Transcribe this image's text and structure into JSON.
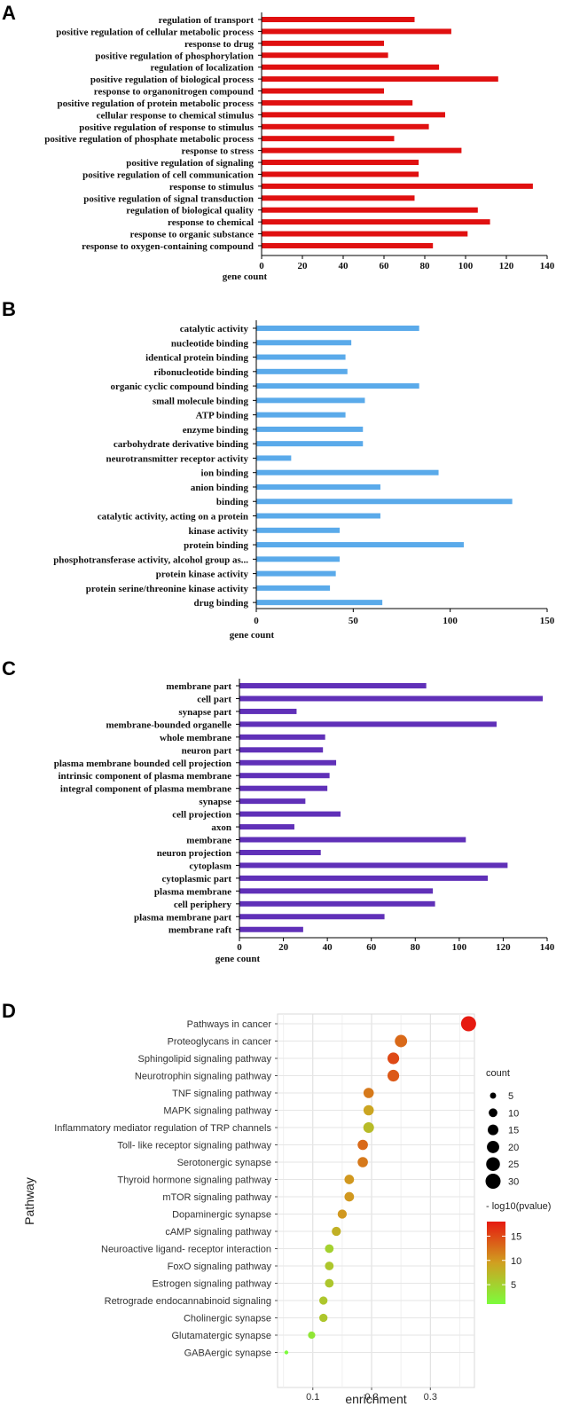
{
  "chart_data": [
    {
      "panel": "A",
      "type": "bar",
      "orientation": "horizontal",
      "categories": [
        "regulation of transport",
        "positive regulation of cellular metabolic process",
        "response to drug",
        "positive regulation of phosphorylation",
        "regulation of localization",
        "positive regulation of biological process",
        "response to organonitrogen compound",
        "positive regulation of protein metabolic process",
        "cellular response to chemical stimulus",
        "positive regulation of response to stimulus",
        "positive regulation of phosphate metabolic process",
        "response to stress",
        "positive regulation of signaling",
        "positive regulation of cell communication",
        "response to stimulus",
        "positive regulation of signal transduction",
        "regulation of biological quality",
        "response to chemical",
        "response to organic substance",
        "response to oxygen-containing compound"
      ],
      "values": [
        75,
        93,
        60,
        62,
        87,
        116,
        60,
        74,
        90,
        82,
        65,
        98,
        77,
        77,
        133,
        75,
        106,
        112,
        101,
        84
      ],
      "xlabel": "gene count",
      "xlim": [
        0,
        140
      ],
      "ticks": [
        0,
        20,
        40,
        60,
        80,
        100,
        120,
        140
      ],
      "color": "#e01010"
    },
    {
      "panel": "B",
      "type": "bar",
      "orientation": "horizontal",
      "categories": [
        "catalytic activity",
        "nucleotide binding",
        "identical protein binding",
        "ribonucleotide binding",
        "organic cyclic compound binding",
        "small molecule binding",
        "ATP binding",
        "enzyme binding",
        "carbohydrate derivative binding",
        "neurotransmitter receptor activity",
        "ion binding",
        "anion binding",
        "binding",
        "catalytic activity, acting on a protein",
        "kinase activity",
        "protein binding",
        "phosphotransferase activity, alcohol group as...",
        "protein kinase activity",
        "protein serine/threonine kinase activity",
        "drug binding"
      ],
      "values": [
        84,
        49,
        46,
        47,
        84,
        56,
        46,
        55,
        55,
        18,
        94,
        64,
        132,
        64,
        43,
        107,
        43,
        41,
        38,
        65
      ],
      "xlabel": "gene count",
      "xlim": [
        0,
        150
      ],
      "ticks": [
        0,
        50,
        100,
        150
      ],
      "color": "#5aaaea"
    },
    {
      "panel": "C",
      "type": "bar",
      "orientation": "horizontal",
      "categories": [
        "membrane part",
        "cell part",
        "synapse part",
        "membrane-bounded organelle",
        "whole membrane",
        "neuron part",
        "plasma membrane bounded cell projection",
        "intrinsic component of plasma membrane",
        "integral component of plasma membrane",
        "synapse",
        "cell projection",
        "axon",
        "membrane",
        "neuron projection",
        "cytoplasm",
        "cytoplasmic part",
        "plasma membrane",
        "cell periphery",
        "plasma membrane part",
        "membrane raft"
      ],
      "values": [
        85,
        138,
        26,
        117,
        39,
        38,
        44,
        41,
        40,
        30,
        46,
        25,
        103,
        37,
        122,
        113,
        88,
        89,
        66,
        29
      ],
      "xlabel": "gene count",
      "xlim": [
        0,
        140
      ],
      "ticks": [
        0,
        20,
        40,
        60,
        80,
        100,
        120,
        140
      ],
      "color": "#6030b8"
    },
    {
      "panel": "D",
      "type": "scatter",
      "ylabel": "Pathway",
      "xlabel": "enrichment",
      "xlim": [
        0.04,
        0.375
      ],
      "ticks": [
        0.1,
        0.2,
        0.3
      ],
      "tick_labels": [
        "0.1",
        "0.2",
        "0.3"
      ],
      "pathways": [
        "Pathways in cancer",
        "Proteoglycans in cancer",
        "Sphingolipid signaling pathway",
        "Neurotrophin signaling pathway",
        "TNF signaling pathway",
        "MAPK signaling pathway",
        "Inflammatory mediator regulation of TRP channels",
        "Toll- like receptor signaling pathway",
        "Serotonergic synapse",
        "Thyroid hormone signaling pathway",
        "mTOR signaling pathway",
        "Dopaminergic synapse",
        "cAMP signaling pathway",
        "Neuroactive ligand- receptor interaction",
        "FoxO signaling pathway",
        "Estrogen signaling pathway",
        "Retrograde endocannabinoid signaling",
        "Cholinergic synapse",
        "Glutamatergic synapse",
        "GABAergic synapse"
      ],
      "enrichment": [
        0.365,
        0.25,
        0.237,
        0.237,
        0.195,
        0.195,
        0.195,
        0.185,
        0.185,
        0.162,
        0.162,
        0.15,
        0.14,
        0.128,
        0.128,
        0.128,
        0.118,
        0.118,
        0.098,
        0.055
      ],
      "count": [
        30,
        20,
        18,
        18,
        14,
        14,
        15,
        14,
        14,
        12,
        12,
        11,
        11,
        10,
        10,
        10,
        9,
        9,
        7,
        2
      ],
      "neg_log10_pvalue": [
        18,
        13,
        15,
        14,
        12,
        9,
        7,
        13,
        12,
        10,
        10,
        10,
        8,
        5,
        6,
        6,
        6,
        6,
        3,
        1
      ],
      "size_legend": {
        "title": "count",
        "values": [
          5,
          10,
          15,
          20,
          25,
          30
        ],
        "labels": [
          "5",
          "10",
          "15",
          "20",
          "25",
          "30"
        ]
      },
      "color_legend": {
        "title": "- log10(pvalue)",
        "range": [
          1,
          18
        ],
        "ticks": [
          5,
          10,
          15
        ],
        "tick_labels": [
          "5",
          "10",
          "15"
        ],
        "low_color": "#7cfc3c",
        "mid_color": "#d0a020",
        "high_color": "#e61a10"
      }
    }
  ]
}
